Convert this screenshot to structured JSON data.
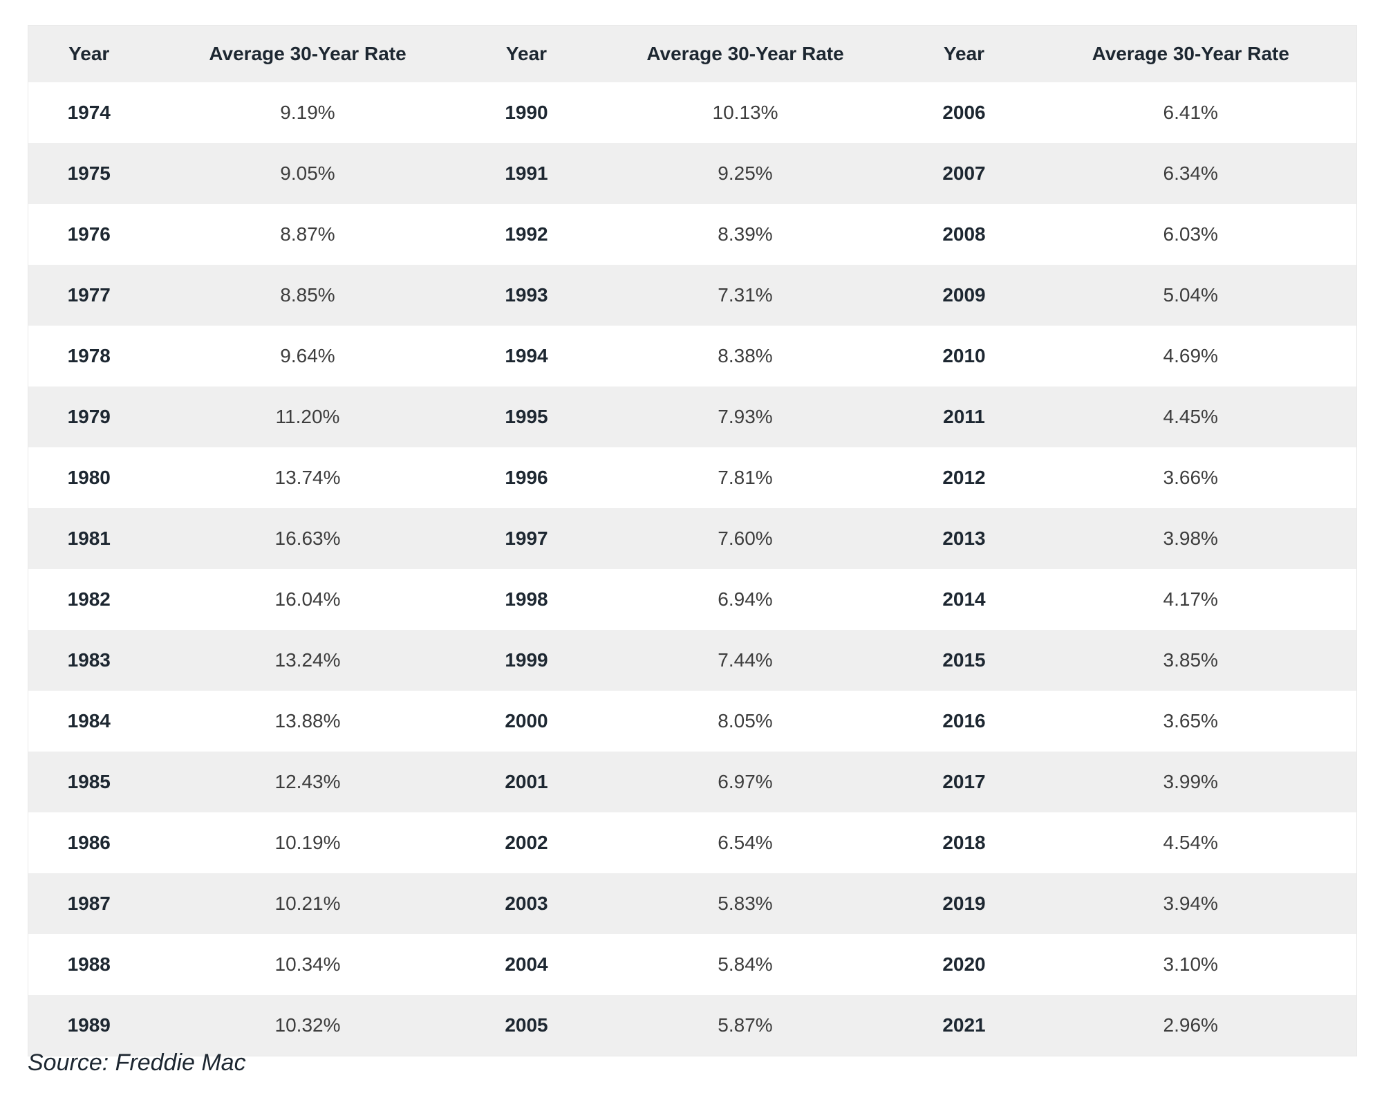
{
  "table": {
    "header": {
      "year_label": "Year",
      "rate_label": "Average 30-Year Rate"
    },
    "columns": [
      {
        "rows": [
          {
            "year": "1974",
            "rate": "9.19%"
          },
          {
            "year": "1975",
            "rate": "9.05%"
          },
          {
            "year": "1976",
            "rate": "8.87%"
          },
          {
            "year": "1977",
            "rate": "8.85%"
          },
          {
            "year": "1978",
            "rate": "9.64%"
          },
          {
            "year": "1979",
            "rate": "11.20%"
          },
          {
            "year": "1980",
            "rate": "13.74%"
          },
          {
            "year": "1981",
            "rate": "16.63%"
          },
          {
            "year": "1982",
            "rate": "16.04%"
          },
          {
            "year": "1983",
            "rate": "13.24%"
          },
          {
            "year": "1984",
            "rate": "13.88%"
          },
          {
            "year": "1985",
            "rate": "12.43%"
          },
          {
            "year": "1986",
            "rate": "10.19%"
          },
          {
            "year": "1987",
            "rate": "10.21%"
          },
          {
            "year": "1988",
            "rate": "10.34%"
          },
          {
            "year": "1989",
            "rate": "10.32%"
          }
        ]
      },
      {
        "rows": [
          {
            "year": "1990",
            "rate": "10.13%"
          },
          {
            "year": "1991",
            "rate": "9.25%"
          },
          {
            "year": "1992",
            "rate": "8.39%"
          },
          {
            "year": "1993",
            "rate": "7.31%"
          },
          {
            "year": "1994",
            "rate": "8.38%"
          },
          {
            "year": "1995",
            "rate": "7.93%"
          },
          {
            "year": "1996",
            "rate": "7.81%"
          },
          {
            "year": "1997",
            "rate": "7.60%"
          },
          {
            "year": "1998",
            "rate": "6.94%"
          },
          {
            "year": "1999",
            "rate": "7.44%"
          },
          {
            "year": "2000",
            "rate": "8.05%"
          },
          {
            "year": "2001",
            "rate": "6.97%"
          },
          {
            "year": "2002",
            "rate": "6.54%"
          },
          {
            "year": "2003",
            "rate": "5.83%"
          },
          {
            "year": "2004",
            "rate": "5.84%"
          },
          {
            "year": "2005",
            "rate": "5.87%"
          }
        ]
      },
      {
        "rows": [
          {
            "year": "2006",
            "rate": "6.41%"
          },
          {
            "year": "2007",
            "rate": "6.34%"
          },
          {
            "year": "2008",
            "rate": "6.03%"
          },
          {
            "year": "2009",
            "rate": "5.04%"
          },
          {
            "year": "2010",
            "rate": "4.69%"
          },
          {
            "year": "2011",
            "rate": "4.45%"
          },
          {
            "year": "2012",
            "rate": "3.66%"
          },
          {
            "year": "2013",
            "rate": "3.98%"
          },
          {
            "year": "2014",
            "rate": "4.17%"
          },
          {
            "year": "2015",
            "rate": "3.85%"
          },
          {
            "year": "2016",
            "rate": "3.65%"
          },
          {
            "year": "2017",
            "rate": "3.99%"
          },
          {
            "year": "2018",
            "rate": "4.54%"
          },
          {
            "year": "2019",
            "rate": "3.94%"
          },
          {
            "year": "2020",
            "rate": "3.10%"
          },
          {
            "year": "2021",
            "rate": "2.96%"
          }
        ]
      }
    ]
  },
  "source": "Source: Freddie Mac",
  "colors": {
    "stripe_gray": "#efefef",
    "header_bg": "#efefef",
    "year_text": "#1d2731",
    "rate_text": "#3d3d3d",
    "border": "#e9e9e9",
    "background": "#ffffff"
  }
}
